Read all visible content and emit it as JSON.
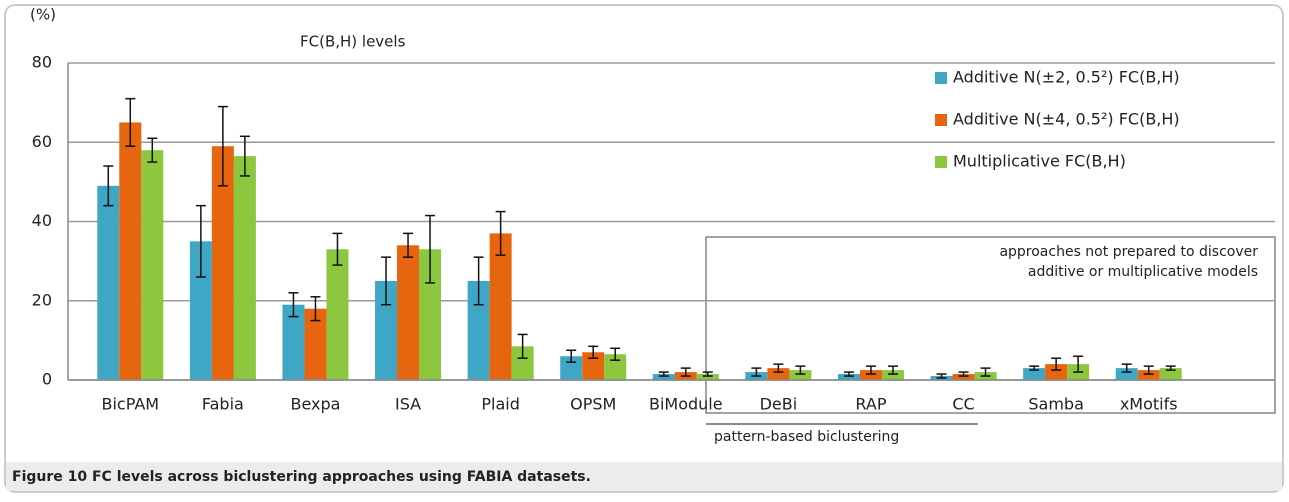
{
  "chart_data": {
    "type": "bar",
    "title": "FC(B,H) levels",
    "y_unit": "(%)",
    "categories": [
      "BicPAM",
      "Fabia",
      "Bexpa",
      "ISA",
      "Plaid",
      "OPSM",
      "BiModule",
      "DeBi",
      "RAP",
      "CC",
      "Samba",
      "xMotifs"
    ],
    "series": [
      {
        "name": "Additive N(±2, 0.5²) FC(B,H)",
        "color": "#3ea7c6",
        "values": [
          49,
          35,
          19,
          25,
          25,
          6,
          1.5,
          2,
          1.5,
          1,
          3,
          3
        ],
        "errors": [
          5,
          9,
          3,
          6,
          6,
          1.5,
          0.5,
          1,
          0.5,
          0.5,
          0.5,
          1
        ]
      },
      {
        "name": "Additive N(±4, 0.5²) FC(B,H)",
        "color": "#e8650f",
        "values": [
          65,
          59,
          18,
          34,
          37,
          7,
          2,
          3,
          2.5,
          1.5,
          4,
          2.5
        ],
        "errors": [
          6,
          10,
          3,
          3,
          5.5,
          1.5,
          1,
          1,
          1,
          0.5,
          1.5,
          1
        ]
      },
      {
        "name": "Multiplicative FC(B,H)",
        "color": "#8dc63f",
        "values": [
          58,
          56.5,
          33,
          33,
          8.5,
          6.5,
          1.5,
          2.5,
          2.5,
          2,
          4,
          3
        ],
        "errors": [
          3,
          5,
          4,
          8.5,
          3,
          1.5,
          0.5,
          1,
          1,
          1,
          2,
          0.5
        ]
      }
    ],
    "ylim": [
      0,
      80
    ],
    "yticks": [
      0,
      20,
      40,
      60,
      80
    ],
    "grid": true,
    "legend": "upper right",
    "annotation_box": [
      "approaches not prepared to discover",
      "additive or multiplicative models"
    ],
    "group_label": "pattern-based biclustering",
    "caption": "Figure 10 FC levels across biclustering approaches using FABIA datasets."
  }
}
